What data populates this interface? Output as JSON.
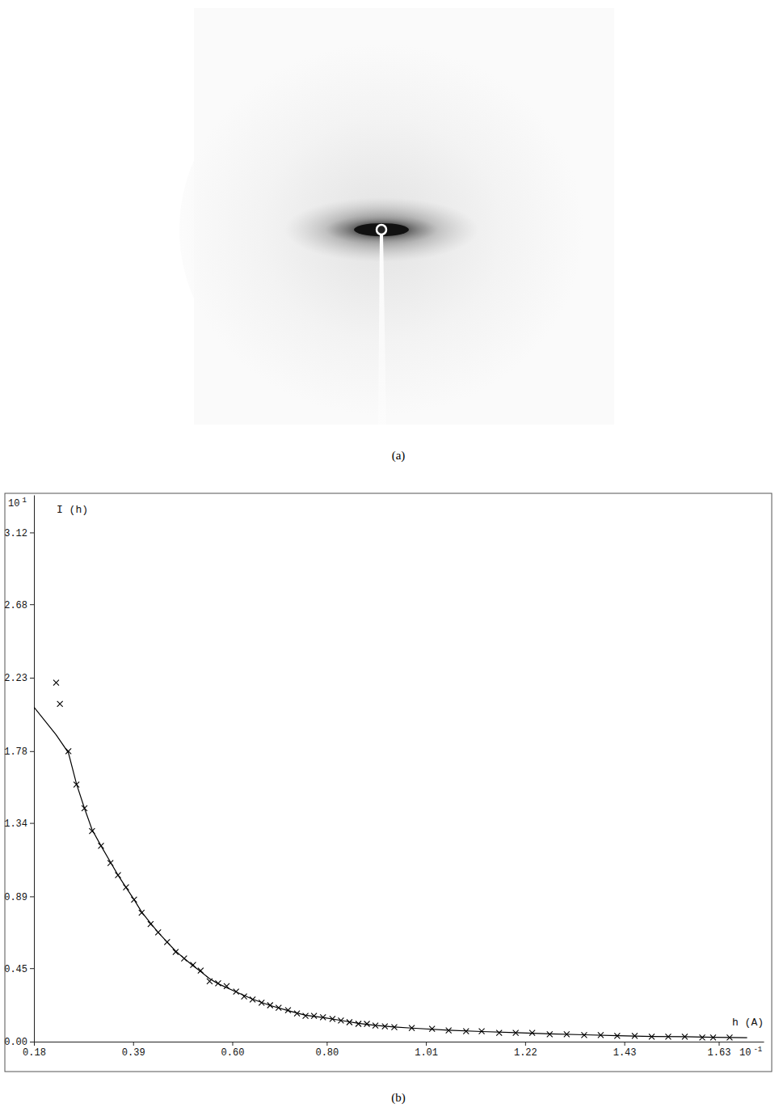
{
  "chart_data": [
    {
      "type": "image",
      "label": "(a)"
    },
    {
      "type": "scatter",
      "label": "(b)",
      "x_label": "h (A)",
      "y_label": "I (h)",
      "annotations": [
        {
          "text": "10",
          "sup": "1",
          "axis": "y"
        },
        {
          "text": "10",
          "sup": "-1",
          "axis": "x"
        }
      ],
      "xlim": [
        0.18,
        1.725
      ],
      "ylim": [
        0,
        3.35
      ],
      "xticks": [
        0.18,
        0.39,
        {
          "value": 0.6,
          "label": "0.60"
        },
        {
          "value": 0.8,
          "label": "0.80"
        },
        1.01,
        1.22,
        1.43,
        1.63
      ],
      "yticks": [
        {
          "value": 0,
          "label": "0.00"
        },
        0.45,
        0.89,
        1.34,
        1.78,
        2.23,
        2.68,
        3.12
      ],
      "grid": false,
      "series": [
        {
          "type": "scatter",
          "marker": "x",
          "color": "#000000",
          "x": [
            0.227,
            0.235,
            0.253,
            0.27,
            0.287,
            0.303,
            0.322,
            0.342,
            0.358,
            0.375,
            0.392,
            0.408,
            0.427,
            0.443,
            0.462,
            0.48,
            0.498,
            0.517,
            0.533,
            0.552,
            0.57,
            0.588,
            0.608,
            0.625,
            0.643,
            0.662,
            0.68,
            0.698,
            0.718,
            0.737,
            0.755,
            0.773,
            0.792,
            0.812,
            0.83,
            0.848,
            0.867,
            0.885,
            0.903,
            0.923,
            0.943,
            0.98,
            1.023,
            1.058,
            1.095,
            1.128,
            1.165,
            1.2,
            1.235,
            1.272,
            1.308,
            1.345,
            1.38,
            1.415,
            1.452,
            1.488,
            1.523,
            1.558,
            1.595,
            1.618,
            1.653
          ],
          "values": [
            2.2,
            2.07,
            1.78,
            1.575,
            1.43,
            1.29,
            1.2,
            1.095,
            1.02,
            0.946,
            0.87,
            0.79,
            0.72,
            0.67,
            0.61,
            0.55,
            0.51,
            0.47,
            0.436,
            0.37,
            0.357,
            0.34,
            0.307,
            0.277,
            0.258,
            0.238,
            0.223,
            0.208,
            0.193,
            0.173,
            0.158,
            0.158,
            0.149,
            0.139,
            0.129,
            0.119,
            0.109,
            0.109,
            0.099,
            0.094,
            0.089,
            0.084,
            0.079,
            0.069,
            0.064,
            0.064,
            0.054,
            0.054,
            0.054,
            0.045,
            0.045,
            0.04,
            0.04,
            0.035,
            0.035,
            0.03,
            0.03,
            0.03,
            0.025,
            0.025,
            0.025
          ]
        },
        {
          "type": "line",
          "line_style": "solid",
          "color": "#000000",
          "x": [
            0.18,
            0.227,
            0.253,
            0.27,
            0.287,
            0.303,
            0.322,
            0.342,
            0.358,
            0.375,
            0.392,
            0.408,
            0.427,
            0.443,
            0.462,
            0.48,
            0.498,
            0.517,
            0.533,
            0.552,
            0.57,
            0.608,
            0.643,
            0.68,
            0.718,
            0.755,
            0.792,
            0.83,
            0.867,
            0.903,
            0.943,
            0.98,
            1.058,
            1.128,
            1.2,
            1.272,
            1.345,
            1.415,
            1.488,
            1.558,
            1.618,
            1.69
          ],
          "values": [
            2.05,
            1.88,
            1.77,
            1.58,
            1.43,
            1.3,
            1.2,
            1.1,
            1.02,
            0.945,
            0.87,
            0.795,
            0.725,
            0.67,
            0.61,
            0.555,
            0.51,
            0.465,
            0.43,
            0.385,
            0.355,
            0.305,
            0.26,
            0.222,
            0.19,
            0.162,
            0.148,
            0.13,
            0.112,
            0.1,
            0.09,
            0.083,
            0.07,
            0.062,
            0.055,
            0.048,
            0.042,
            0.037,
            0.032,
            0.03,
            0.027,
            0.024
          ]
        }
      ]
    }
  ]
}
